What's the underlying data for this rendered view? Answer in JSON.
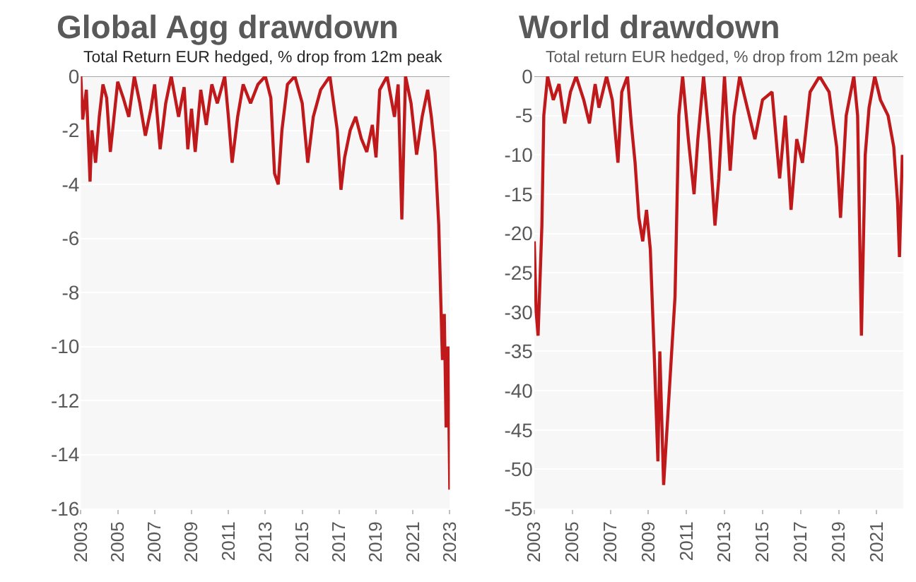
{
  "chart_data": [
    {
      "type": "line",
      "title": "Global Agg drawdown",
      "subtitle": "Total Return EUR hedged, % drop from 12m peak",
      "x": [
        2003.0,
        2003.1,
        2003.3,
        2003.5,
        2003.6,
        2003.8,
        2004.0,
        2004.2,
        2004.4,
        2004.6,
        2004.8,
        2005.0,
        2005.3,
        2005.6,
        2005.9,
        2006.2,
        2006.5,
        2006.8,
        2007.0,
        2007.3,
        2007.6,
        2007.9,
        2008.3,
        2008.6,
        2008.8,
        2009.0,
        2009.2,
        2009.5,
        2009.8,
        2010.1,
        2010.4,
        2010.8,
        2011.0,
        2011.2,
        2011.5,
        2011.8,
        2012.2,
        2012.6,
        2013.0,
        2013.3,
        2013.5,
        2013.7,
        2013.9,
        2014.2,
        2014.6,
        2015.0,
        2015.3,
        2015.6,
        2016.0,
        2016.5,
        2016.9,
        2017.1,
        2017.3,
        2017.6,
        2017.9,
        2018.2,
        2018.5,
        2018.8,
        2019.0,
        2019.2,
        2019.6,
        2020.0,
        2020.2,
        2020.4,
        2020.6,
        2020.9,
        2021.2,
        2021.5,
        2021.8,
        2022.0,
        2022.2,
        2022.4,
        2022.6,
        2022.7,
        2022.8,
        2022.9,
        2023.0
      ],
      "series": [
        {
          "color": "#c0191c",
          "values": [
            0,
            -1.6,
            -0.5,
            -3.9,
            -2,
            -3.2,
            -1.5,
            -0.3,
            -0.8,
            -2.8,
            -1.5,
            -0.2,
            -0.8,
            -1.5,
            0,
            -1,
            -2.2,
            -1.2,
            -0.3,
            -2.7,
            -1,
            0,
            -1.5,
            -0.4,
            -2.7,
            -1.2,
            -2.8,
            -0.5,
            -1.8,
            -0.3,
            -1,
            0,
            -1.5,
            -3.2,
            -1.5,
            -0.3,
            -1,
            -0.3,
            0,
            -0.8,
            -3.6,
            -4,
            -2,
            -0.3,
            0,
            -1,
            -3.2,
            -1.5,
            -0.5,
            0,
            -2,
            -4.2,
            -3,
            -2,
            -1.5,
            -2.3,
            -2.8,
            -1.8,
            -3,
            -0.5,
            0,
            -1.5,
            -0.3,
            -5.3,
            0,
            -1,
            -2.9,
            -1.5,
            -0.5,
            -1.5,
            -2.8,
            -5.5,
            -10.5,
            -8.8,
            -13,
            -10,
            -15.3
          ]
        }
      ],
      "xlim": [
        2003,
        2023
      ],
      "xticks": [
        2003,
        2005,
        2007,
        2009,
        2011,
        2013,
        2015,
        2017,
        2019,
        2021,
        2023
      ],
      "ylim": [
        -16,
        0
      ],
      "yticks": [
        0,
        -2,
        -4,
        -6,
        -8,
        -10,
        -12,
        -14,
        -16
      ],
      "grid": "y",
      "line_style": "solid",
      "marker": "none"
    },
    {
      "type": "line",
      "title": "World drawdown",
      "subtitle": "Total return EUR hedged, % drop from 12m peak",
      "x": [
        2003.0,
        2003.1,
        2003.2,
        2003.4,
        2003.5,
        2003.7,
        2004.0,
        2004.3,
        2004.6,
        2004.9,
        2005.2,
        2005.6,
        2005.9,
        2006.2,
        2006.4,
        2006.8,
        2007.1,
        2007.4,
        2007.6,
        2007.9,
        2008.1,
        2008.3,
        2008.5,
        2008.7,
        2008.9,
        2009.1,
        2009.3,
        2009.5,
        2009.6,
        2009.8,
        2010.1,
        2010.4,
        2010.6,
        2010.8,
        2011.1,
        2011.4,
        2011.6,
        2011.9,
        2012.2,
        2012.5,
        2012.7,
        2013.0,
        2013.3,
        2013.5,
        2013.8,
        2014.2,
        2014.6,
        2015.0,
        2015.5,
        2015.9,
        2016.2,
        2016.5,
        2016.8,
        2017.1,
        2017.5,
        2018.0,
        2018.5,
        2018.9,
        2019.1,
        2019.4,
        2019.8,
        2020.0,
        2020.2,
        2020.4,
        2020.6,
        2020.9,
        2021.2,
        2021.6,
        2021.9,
        2022.1,
        2022.2,
        2022.35
      ],
      "series": [
        {
          "color": "#c0191c",
          "values": [
            -21,
            -30,
            -33,
            -19,
            -5,
            0,
            -3,
            -1,
            -6,
            -2,
            0,
            -3,
            -6,
            -1,
            -4,
            0,
            -3,
            -11,
            -2,
            0,
            -6,
            -11,
            -18,
            -21,
            -17,
            -22,
            -35,
            -49,
            -35,
            -52,
            -40,
            -28,
            -5,
            0,
            -8,
            -15,
            -8,
            0,
            -8,
            -19,
            -13,
            0,
            -12,
            -5,
            0,
            -4,
            -8,
            -3,
            -2,
            -13,
            -5,
            -17,
            -8,
            -11,
            -2,
            0,
            -2,
            -9,
            -18,
            -5,
            0,
            -5,
            -33,
            -10,
            -4,
            0,
            -3,
            -5,
            -9,
            -16,
            -23,
            -10
          ]
        }
      ],
      "xlim": [
        2003,
        2022.4
      ],
      "xticks": [
        2003,
        2005,
        2007,
        2009,
        2011,
        2013,
        2015,
        2017,
        2019,
        2021
      ],
      "ylim": [
        -55,
        0
      ],
      "yticks": [
        0,
        -5,
        -10,
        -15,
        -20,
        -25,
        -30,
        -35,
        -40,
        -45,
        -50,
        -55
      ],
      "grid": "y",
      "line_style": "solid",
      "marker": "none"
    }
  ]
}
